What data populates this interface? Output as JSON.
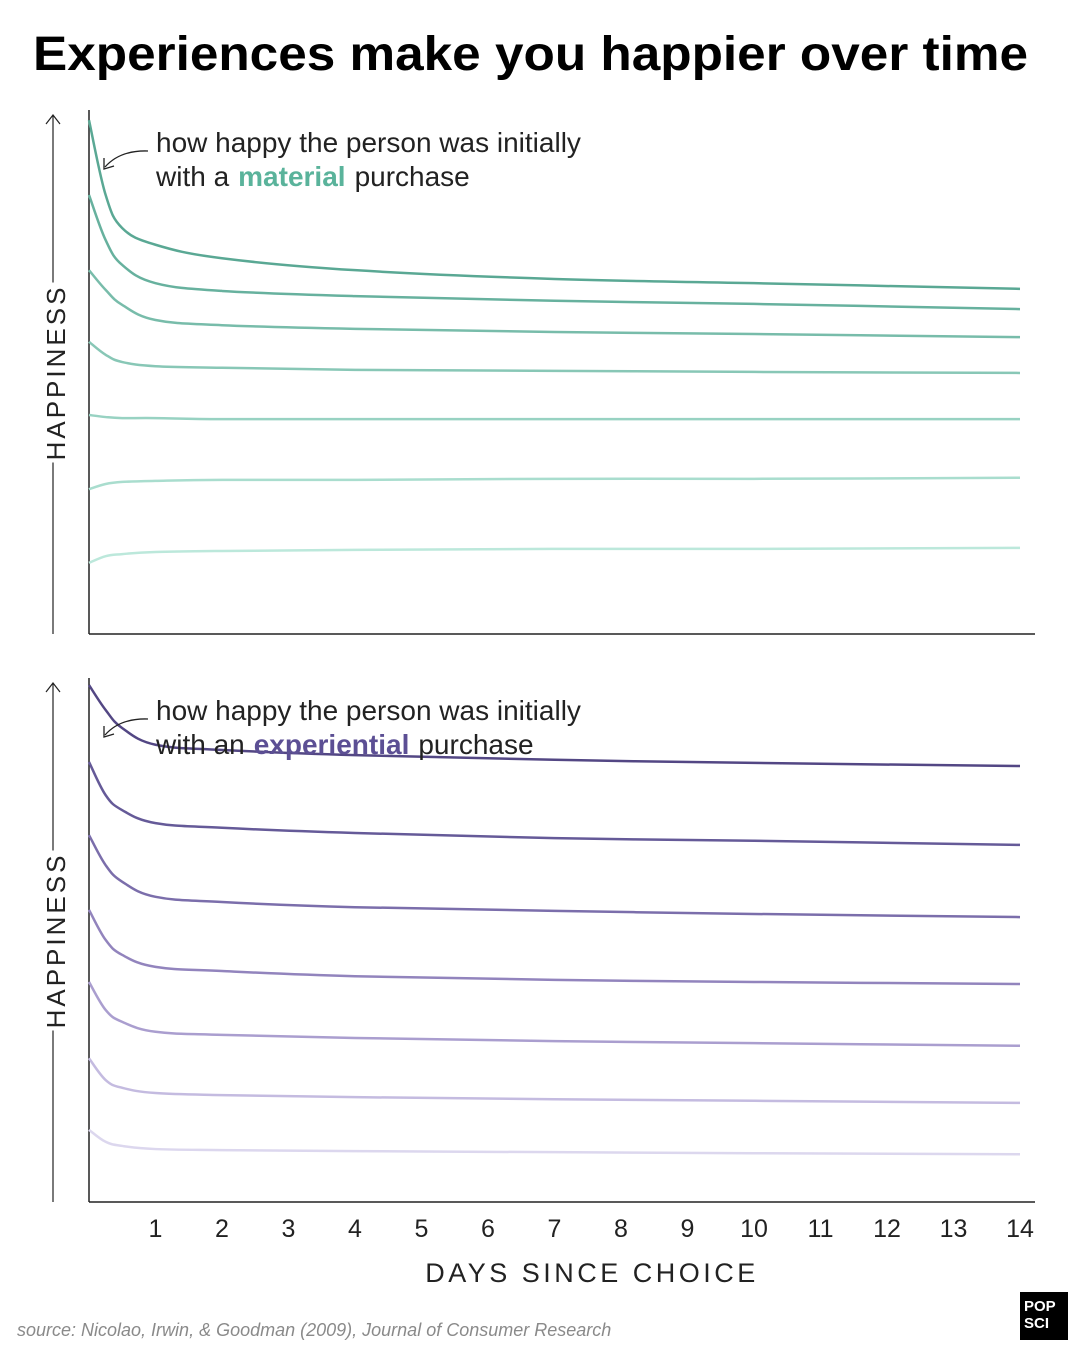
{
  "title": "Experiences make you happier over time",
  "source": "source: Nicolao, Irwin, & Goodman (2009), Journal of Consumer Research",
  "logo": [
    "POP",
    "SCI"
  ],
  "chart_data": [
    {
      "type": "line",
      "ylabel": "HAPPINESS",
      "annotation": [
        "how happy the person was initially",
        "with a",
        "material",
        "purchase"
      ],
      "highlight_color": "#5ab39b",
      "x": [
        0,
        0.25,
        0.5,
        1,
        2,
        4,
        7,
        10,
        14
      ],
      "xlim": [
        0,
        14
      ],
      "ylim": [
        0,
        100
      ],
      "series": [
        {
          "color": "#5aa894",
          "values": [
            99.0,
            84.6,
            78.2,
            75.0,
            72.4,
            70.1,
            68.4,
            67.6,
            66.5
          ]
        },
        {
          "color": "#67b19e",
          "values": [
            84.6,
            75.9,
            71.1,
            67.6,
            66.1,
            65.1,
            64.2,
            63.6,
            62.6
          ]
        },
        {
          "color": "#78bcaa",
          "values": [
            70.1,
            66.3,
            63.4,
            60.5,
            59.5,
            58.8,
            58.2,
            57.8,
            57.2
          ]
        },
        {
          "color": "#88c7b6",
          "values": [
            56.3,
            53.8,
            52.4,
            51.6,
            51.3,
            50.9,
            50.7,
            50.5,
            50.3
          ]
        },
        {
          "color": "#98d2c2",
          "values": [
            42.2,
            41.8,
            41.6,
            41.6,
            41.4,
            41.4,
            41.4,
            41.4,
            41.4
          ]
        },
        {
          "color": "#a9ddce",
          "values": [
            27.9,
            28.9,
            29.3,
            29.5,
            29.7,
            29.7,
            29.9,
            29.9,
            30.1
          ]
        },
        {
          "color": "#bce8db",
          "values": [
            13.7,
            15.0,
            15.4,
            15.8,
            16.0,
            16.2,
            16.4,
            16.4,
            16.6
          ]
        }
      ]
    },
    {
      "type": "line",
      "ylabel": "HAPPINESS",
      "xlabel": "DAYS SINCE CHOICE",
      "annotation": [
        "how happy the person was initially",
        "with an",
        "experiential",
        "purchase"
      ],
      "highlight_color": "#5c4f94",
      "x": [
        0,
        0.25,
        0.5,
        1,
        2,
        4,
        7,
        10,
        14
      ],
      "xlim": [
        0,
        14
      ],
      "xticks": [
        1,
        2,
        3,
        4,
        5,
        6,
        7,
        8,
        9,
        10,
        11,
        12,
        13,
        14
      ],
      "ylim": [
        0,
        100
      ],
      "series": [
        {
          "color": "#534784",
          "values": [
            99.6,
            94.8,
            91.3,
            88.1,
            87.1,
            86.1,
            85.2,
            84.6,
            84.0
          ]
        },
        {
          "color": "#655a98",
          "values": [
            84.8,
            78.4,
            75.5,
            73.0,
            72.1,
            71.1,
            70.1,
            69.6,
            68.8
          ]
        },
        {
          "color": "#7b6eab",
          "values": [
            70.7,
            64.9,
            61.7,
            58.8,
            57.8,
            56.8,
            56.1,
            55.5,
            54.9
          ]
        },
        {
          "color": "#9284bd",
          "values": [
            56.3,
            50.5,
            47.6,
            45.3,
            44.5,
            43.5,
            42.8,
            42.4,
            42.0
          ]
        },
        {
          "color": "#aa9ecf",
          "values": [
            42.4,
            37.0,
            34.7,
            32.8,
            32.2,
            31.6,
            31.0,
            30.6,
            30.1
          ]
        },
        {
          "color": "#c4bbe0",
          "values": [
            27.7,
            23.5,
            22.0,
            21.0,
            20.6,
            20.2,
            19.8,
            19.5,
            19.1
          ]
        },
        {
          "color": "#dcd7ee",
          "values": [
            13.9,
            11.6,
            10.8,
            10.2,
            10.0,
            9.8,
            9.6,
            9.4,
            9.2
          ]
        }
      ]
    }
  ]
}
